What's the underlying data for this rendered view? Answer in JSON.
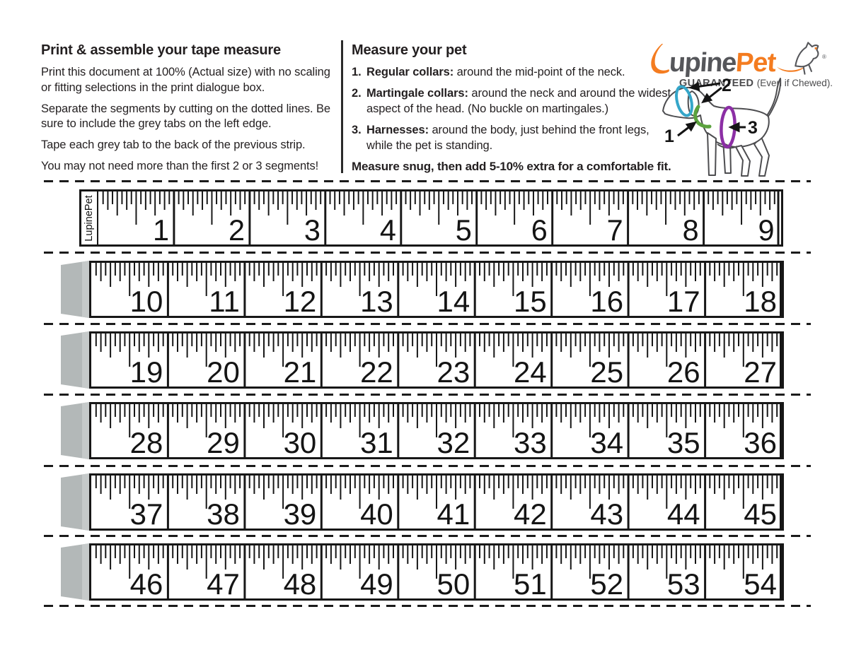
{
  "left_column": {
    "title": "Print & assemble your tape measure",
    "paragraphs": [
      "Print this document at 100% (Actual size) with no scaling or fitting selections in the print dialogue box.",
      "Separate the segments by cutting on the dotted lines. Be sure to include the grey tabs on the left edge.",
      "Tape each grey tab to the back of the previous strip.",
      "You may not need more than the first 2 or 3 segments!"
    ]
  },
  "right_column": {
    "title": "Measure your pet",
    "items": [
      {
        "num": "1.",
        "lead": "Regular collars:",
        "text": " around the mid-point of the neck."
      },
      {
        "num": "2.",
        "lead": "Martingale collars:",
        "text": " around the neck and around the widest aspect of the head. (No buckle on martingales.)"
      },
      {
        "num": "3.",
        "lead": "Harnesses:",
        "text": " around the body, just behind the front legs, while the pet is standing."
      }
    ],
    "footer": "Measure snug, then add 5-10% extra for a comfortable fit."
  },
  "logo": {
    "full_name": "LupinePet",
    "name_mid": "upine",
    "name_accent": "Pet",
    "reg_mark": "®",
    "guaranteed": "GUARANTEED",
    "tagline": "(Even if Chewed).",
    "orange": "#f47c20",
    "gray": "#55565a"
  },
  "measure_diagram": {
    "labels": [
      "1",
      "2",
      "3"
    ],
    "band_colors": {
      "head_band": "#35a6c9",
      "neck_collar": "#5ba23e",
      "harness": "#8c2fa5"
    }
  },
  "tape": {
    "side_label": "LupinePet",
    "unit": "inches",
    "divisions_per_inch": 16,
    "inches_per_strip": 9,
    "tab_color": "#b3b8b8",
    "strips": [
      {
        "tab": false,
        "numbers": [
          1,
          2,
          3,
          4,
          5,
          6,
          7,
          8,
          9
        ]
      },
      {
        "tab": true,
        "numbers": [
          10,
          11,
          12,
          13,
          14,
          15,
          16,
          17,
          18
        ]
      },
      {
        "tab": true,
        "numbers": [
          19,
          20,
          21,
          22,
          23,
          24,
          25,
          26,
          27
        ]
      },
      {
        "tab": true,
        "numbers": [
          28,
          29,
          30,
          31,
          32,
          33,
          34,
          35,
          36
        ]
      },
      {
        "tab": true,
        "numbers": [
          37,
          38,
          39,
          40,
          41,
          42,
          43,
          44,
          45
        ]
      },
      {
        "tab": true,
        "numbers": [
          46,
          47,
          48,
          49,
          50,
          51,
          52,
          53,
          54
        ]
      }
    ]
  }
}
